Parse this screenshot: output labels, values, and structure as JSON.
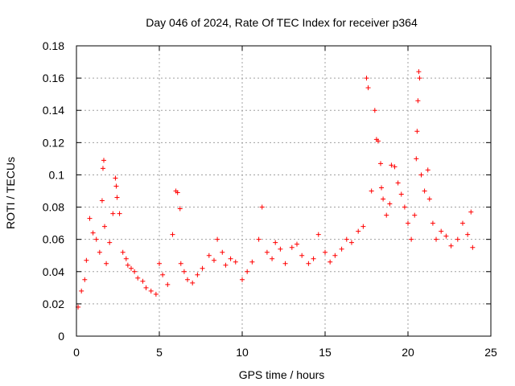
{
  "chart_data": {
    "type": "scatter",
    "title": "Day 046 of 2024, Rate Of TEC Index for receiver p364",
    "xlabel": "GPS time / hours",
    "ylabel": "ROTI / TECUs",
    "xlim": [
      0,
      25
    ],
    "ylim": [
      0,
      0.18
    ],
    "x_ticks": [
      0,
      5,
      10,
      15,
      20,
      25
    ],
    "x_tick_labels": [
      "0",
      "5",
      "10",
      "15",
      "20",
      "25"
    ],
    "y_ticks": [
      0,
      0.02,
      0.04,
      0.06,
      0.08,
      0.1,
      0.12,
      0.14,
      0.16,
      0.18
    ],
    "y_tick_labels": [
      "0",
      "0.02",
      "0.04",
      "0.06",
      "0.08",
      "0.1",
      "0.12",
      "0.14",
      "0.16",
      "0.18"
    ],
    "grid": true,
    "marker": "+",
    "series": [
      {
        "name": "ROTI",
        "color": "#ff0000",
        "x": [
          0.1,
          0.3,
          0.5,
          0.6,
          0.8,
          1.0,
          1.2,
          1.4,
          1.55,
          1.6,
          1.65,
          1.7,
          1.8,
          2.0,
          2.2,
          2.35,
          2.4,
          2.45,
          2.6,
          2.8,
          3.0,
          3.1,
          3.3,
          3.5,
          3.7,
          4.0,
          4.2,
          4.5,
          4.8,
          5.0,
          5.2,
          5.5,
          5.8,
          6.0,
          6.1,
          6.25,
          6.3,
          6.5,
          6.7,
          7.0,
          7.3,
          7.6,
          8.0,
          8.3,
          8.5,
          8.8,
          9.0,
          9.3,
          9.6,
          10.0,
          10.3,
          10.6,
          11.0,
          11.2,
          11.5,
          11.8,
          12.0,
          12.3,
          12.6,
          13.0,
          13.3,
          13.6,
          14.0,
          14.3,
          14.6,
          15.0,
          15.3,
          15.6,
          16.0,
          16.3,
          16.6,
          17.0,
          17.3,
          17.5,
          17.6,
          17.8,
          18.0,
          18.1,
          18.2,
          18.35,
          18.4,
          18.5,
          18.7,
          18.9,
          19.0,
          19.2,
          19.4,
          19.6,
          19.8,
          20.0,
          20.2,
          20.4,
          20.5,
          20.55,
          20.6,
          20.65,
          20.7,
          20.8,
          21.0,
          21.2,
          21.3,
          21.5,
          21.7,
          22.0,
          22.3,
          22.6,
          23.0,
          23.3,
          23.6,
          23.8,
          23.9
        ],
        "y": [
          0.018,
          0.028,
          0.035,
          0.047,
          0.073,
          0.064,
          0.06,
          0.052,
          0.084,
          0.104,
          0.109,
          0.068,
          0.045,
          0.058,
          0.076,
          0.098,
          0.093,
          0.086,
          0.076,
          0.052,
          0.048,
          0.044,
          0.042,
          0.04,
          0.036,
          0.034,
          0.03,
          0.028,
          0.026,
          0.045,
          0.038,
          0.032,
          0.063,
          0.09,
          0.089,
          0.079,
          0.045,
          0.04,
          0.035,
          0.033,
          0.038,
          0.042,
          0.05,
          0.047,
          0.06,
          0.052,
          0.044,
          0.048,
          0.046,
          0.035,
          0.04,
          0.046,
          0.06,
          0.08,
          0.052,
          0.048,
          0.058,
          0.054,
          0.045,
          0.055,
          0.057,
          0.05,
          0.045,
          0.048,
          0.063,
          0.052,
          0.046,
          0.05,
          0.054,
          0.06,
          0.058,
          0.065,
          0.068,
          0.16,
          0.154,
          0.09,
          0.14,
          0.122,
          0.121,
          0.107,
          0.092,
          0.085,
          0.075,
          0.082,
          0.106,
          0.105,
          0.095,
          0.088,
          0.08,
          0.07,
          0.06,
          0.075,
          0.11,
          0.127,
          0.146,
          0.164,
          0.16,
          0.1,
          0.09,
          0.103,
          0.085,
          0.07,
          0.06,
          0.065,
          0.062,
          0.056,
          0.06,
          0.07,
          0.063,
          0.077,
          0.055
        ]
      }
    ]
  }
}
